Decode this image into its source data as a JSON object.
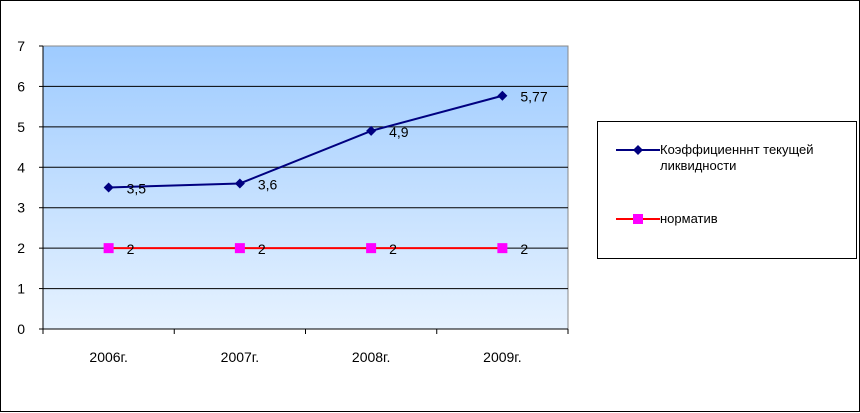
{
  "chart_data": {
    "type": "line",
    "categories": [
      "2006г.",
      "2007г.",
      "2008г.",
      "2009г."
    ],
    "ylim": [
      0,
      7
    ],
    "yticks": [
      0,
      1,
      2,
      3,
      4,
      5,
      6,
      7
    ],
    "grid": true,
    "legend_position": "right",
    "series": [
      {
        "name": "Коэффициенннт текущей ликвидности",
        "values": [
          3.5,
          3.6,
          4.9,
          5.77
        ],
        "labels": [
          "3,5",
          "3,6",
          "4,9",
          "5,77"
        ],
        "color": "#000080",
        "marker": "diamond"
      },
      {
        "name": "норматив",
        "values": [
          2,
          2,
          2,
          2
        ],
        "labels": [
          "2",
          "2",
          "2",
          "2"
        ],
        "color": "#FF0000",
        "marker_color": "#FF00FF",
        "marker": "square"
      }
    ]
  }
}
